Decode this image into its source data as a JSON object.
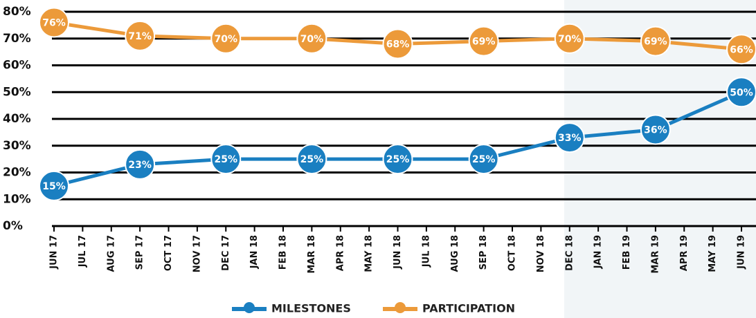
{
  "chart_data": {
    "type": "line",
    "categories": [
      "JUN 17",
      "JUL 17",
      "AUG 17",
      "SEP 17",
      "OCT 17",
      "NOV 17",
      "DEC 17",
      "JAN 18",
      "FEB 18",
      "MAR 18",
      "APR 18",
      "MAY 18",
      "JUN 18",
      "JUL 18",
      "AUG 18",
      "SEP 18",
      "OCT 18",
      "NOV 18",
      "DEC 18",
      "JAN 19",
      "FEB 19",
      "MAR 19",
      "APR 19",
      "MAY 19",
      "JUN 19"
    ],
    "series": [
      {
        "name": "MILESTONES",
        "color": "#1a7fc1",
        "x": [
          "JUN 17",
          "SEP 17",
          "DEC 17",
          "MAR 18",
          "JUN 18",
          "SEP 18",
          "DEC 18",
          "MAR 19",
          "JUN 19"
        ],
        "values": [
          15,
          23,
          25,
          25,
          25,
          25,
          33,
          36,
          50
        ],
        "value_labels": [
          "15%",
          "23%",
          "25%",
          "25%",
          "25%",
          "25%",
          "33%",
          "36%",
          "50%"
        ]
      },
      {
        "name": "PARTICIPATION",
        "color": "#ec9a3a",
        "x": [
          "JUN 17",
          "SEP 17",
          "DEC 17",
          "MAR 18",
          "JUN 18",
          "SEP 18",
          "DEC 18",
          "MAR 19",
          "JUN 19"
        ],
        "values": [
          76,
          71,
          70,
          70,
          68,
          69,
          70,
          69,
          66
        ],
        "value_labels": [
          "76%",
          "71%",
          "70%",
          "70%",
          "68%",
          "69%",
          "70%",
          "69%",
          "66%"
        ]
      }
    ],
    "ylim": [
      0,
      80
    ],
    "yticks": [
      {
        "value": 0,
        "label": "0%"
      },
      {
        "value": 10,
        "label": "10%"
      },
      {
        "value": 20,
        "label": "20%"
      },
      {
        "value": 30,
        "label": "30%"
      },
      {
        "value": 40,
        "label": "40%"
      },
      {
        "value": 50,
        "label": "50%"
      },
      {
        "value": 60,
        "label": "60%"
      },
      {
        "value": 70,
        "label": "70%"
      },
      {
        "value": 80,
        "label": "80%"
      }
    ],
    "grid": true,
    "legend": "bottom"
  }
}
